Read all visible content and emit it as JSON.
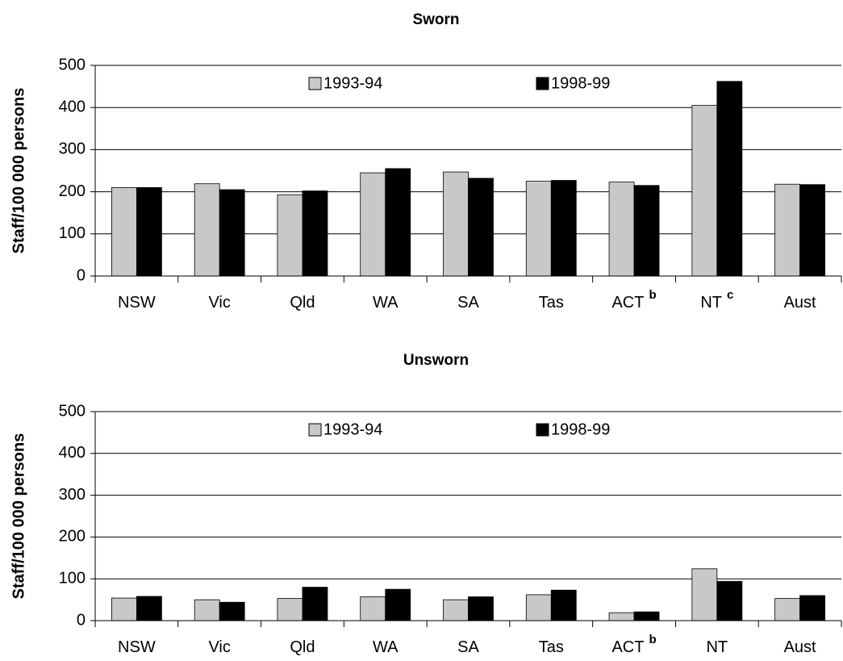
{
  "chart_data": [
    {
      "type": "bar",
      "title": "Sworn",
      "y_label": "Staff/100 000 persons",
      "categories": [
        "NSW",
        "Vic",
        "Qld",
        "WA",
        "SA",
        "Tas",
        "ACT",
        "NT",
        "Aust"
      ],
      "category_superscripts": [
        null,
        null,
        null,
        null,
        null,
        null,
        "b",
        "c",
        null
      ],
      "series": [
        {
          "name": "1993-94",
          "color": "#c8c8c8",
          "values": [
            210,
            219,
            193,
            245,
            247,
            225,
            223,
            405,
            218
          ]
        },
        {
          "name": "1998-99",
          "color": "#000000",
          "values": [
            210,
            205,
            202,
            255,
            232,
            227,
            215,
            462,
            217
          ]
        }
      ],
      "ylim": [
        0,
        500
      ],
      "yticks": [
        0,
        100,
        200,
        300,
        400,
        500
      ],
      "grid": true,
      "legend": "top"
    },
    {
      "type": "bar",
      "title": "Unsworn",
      "y_label": "Staff/100 000 persons",
      "categories": [
        "NSW",
        "Vic",
        "Qld",
        "WA",
        "SA",
        "Tas",
        "ACT",
        "NT",
        "Aust"
      ],
      "category_superscripts": [
        null,
        null,
        null,
        null,
        null,
        null,
        "b",
        null,
        null
      ],
      "series": [
        {
          "name": "1993-94",
          "color": "#c8c8c8",
          "values": [
            54,
            50,
            53,
            57,
            50,
            62,
            19,
            124,
            53
          ]
        },
        {
          "name": "1998-99",
          "color": "#000000",
          "values": [
            58,
            44,
            80,
            75,
            57,
            73,
            21,
            94,
            60
          ]
        }
      ],
      "ylim": [
        0,
        500
      ],
      "yticks": [
        0,
        100,
        200,
        300,
        400,
        500
      ],
      "grid": true,
      "legend": "top"
    }
  ]
}
